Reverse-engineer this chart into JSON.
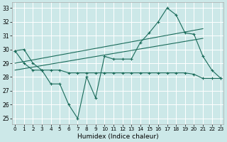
{
  "xlabel": "Humidex (Indice chaleur)",
  "background_color": "#cce8e8",
  "grid_color": "#b0d8d8",
  "line_color": "#1a6b5a",
  "x": [
    0,
    1,
    2,
    3,
    4,
    5,
    6,
    7,
    8,
    9,
    10,
    11,
    12,
    13,
    14,
    15,
    16,
    17,
    18,
    19,
    20,
    21,
    22,
    23
  ],
  "line_jagged": [
    29.9,
    30.0,
    29.0,
    28.5,
    27.5,
    27.5,
    26.0,
    25.0,
    28.0,
    26.5,
    29.5,
    29.3,
    29.3,
    29.3,
    30.5,
    31.2,
    32.0,
    33.0,
    32.5,
    31.2,
    31.1,
    29.5,
    28.5,
    27.9
  ],
  "line_flat": [
    29.9,
    29.0,
    28.5,
    28.5,
    28.5,
    28.5,
    28.3,
    28.3,
    28.3,
    28.3,
    28.3,
    28.3,
    28.3,
    28.3,
    28.3,
    28.3,
    28.3,
    28.3,
    28.3,
    28.3,
    28.2,
    27.9,
    27.9,
    27.9
  ],
  "trend1_x": [
    0,
    21
  ],
  "trend1_y": [
    29.0,
    31.5
  ],
  "trend2_x": [
    0,
    21
  ],
  "trend2_y": [
    28.5,
    30.8
  ],
  "ylim": [
    24.6,
    33.4
  ],
  "yticks": [
    25,
    26,
    27,
    28,
    29,
    30,
    31,
    32,
    33
  ],
  "xticks": [
    0,
    1,
    2,
    3,
    4,
    5,
    6,
    7,
    8,
    9,
    10,
    11,
    12,
    13,
    14,
    15,
    16,
    17,
    18,
    19,
    20,
    21,
    22,
    23
  ],
  "xlim": [
    -0.3,
    23.3
  ]
}
